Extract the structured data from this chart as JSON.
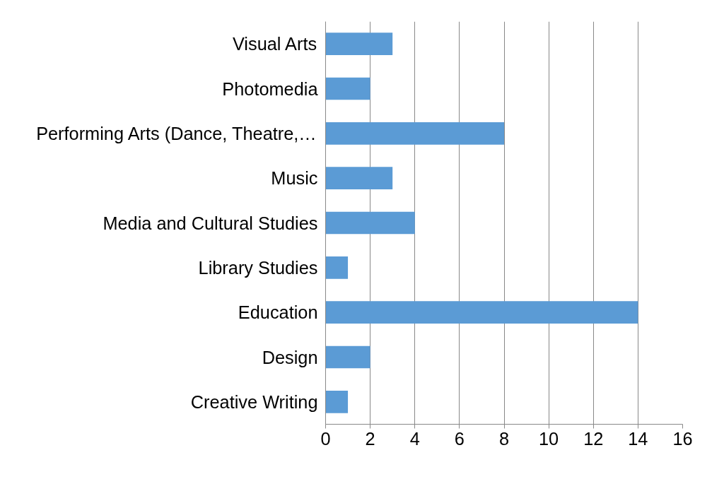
{
  "chart_data": {
    "type": "bar",
    "orientation": "horizontal",
    "categories": [
      "Visual Arts",
      "Photomedia",
      "Performing Arts (Dance, Theatre,…",
      "Music",
      "Media and Cultural Studies",
      "Library Studies",
      "Education",
      "Design",
      "Creative Writing"
    ],
    "values": [
      3,
      2,
      8,
      3,
      4,
      1,
      14,
      2,
      1
    ],
    "color": "#5b9bd5",
    "xlim": [
      0,
      16
    ],
    "xticks": [
      0,
      2,
      4,
      6,
      8,
      10,
      12,
      14,
      16
    ],
    "grid": "x"
  }
}
